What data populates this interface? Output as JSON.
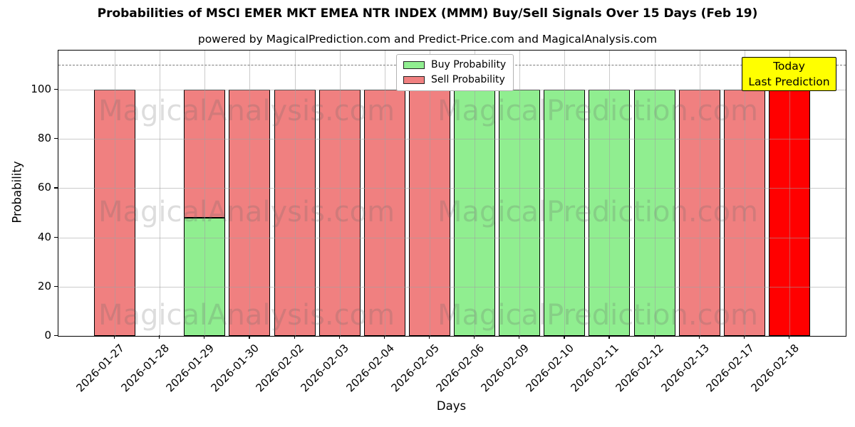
{
  "chart_data": {
    "type": "bar",
    "stacked": true,
    "title": "Probabilities of MSCI EMER MKT EMEA NTR INDEX (MMM) Buy/Sell Signals Over 15 Days (Feb 19)",
    "subtitle": "powered by MagicalPrediction.com and Predict-Price.com and MagicalAnalysis.com",
    "xlabel": "Days",
    "ylabel": "Probability",
    "ylim": [
      0,
      116
    ],
    "yticks": [
      0,
      20,
      40,
      60,
      80,
      100
    ],
    "grid": true,
    "dashed_threshold_y": 110,
    "legend_position": "top-center",
    "categories": [
      "2026-01-27",
      "2026-01-28",
      "2026-01-29",
      "2026-01-30",
      "2026-02-02",
      "2026-02-03",
      "2026-02-04",
      "2026-02-05",
      "2026-02-06",
      "2026-02-09",
      "2026-02-10",
      "2026-02-11",
      "2026-02-12",
      "2026-02-13",
      "2026-02-17",
      "2026-02-18"
    ],
    "series": [
      {
        "name": "Buy Probability",
        "color": "#90EE90",
        "in_legend": true,
        "values": [
          0,
          0,
          48,
          0,
          0,
          0,
          0,
          0,
          100,
          100,
          100,
          100,
          100,
          0,
          0,
          0
        ]
      },
      {
        "name": "Sell Probability",
        "color": "#F08080",
        "in_legend": true,
        "values": [
          100,
          0,
          52,
          100,
          100,
          100,
          100,
          100,
          0,
          0,
          0,
          0,
          0,
          100,
          100,
          0
        ]
      },
      {
        "name": "Today Last Prediction",
        "color": "#FF0000",
        "in_legend": false,
        "values": [
          0,
          0,
          0,
          0,
          0,
          0,
          0,
          0,
          0,
          0,
          0,
          0,
          0,
          0,
          0,
          100
        ]
      }
    ]
  },
  "annotation": {
    "line1": "Today",
    "line2": "Last Prediction",
    "bg_color": "#FFFF00"
  },
  "watermark": {
    "left_text": "MagicalAnalysis.com",
    "right_text": "MagicalPrediction.com"
  },
  "colors": {
    "buy": "#90EE90",
    "sell": "#F08080",
    "today_bar": "#FF0000",
    "grid": "#b0b0b0",
    "dashed_line": "#7a7a7a",
    "bar_edge": "#000000"
  }
}
